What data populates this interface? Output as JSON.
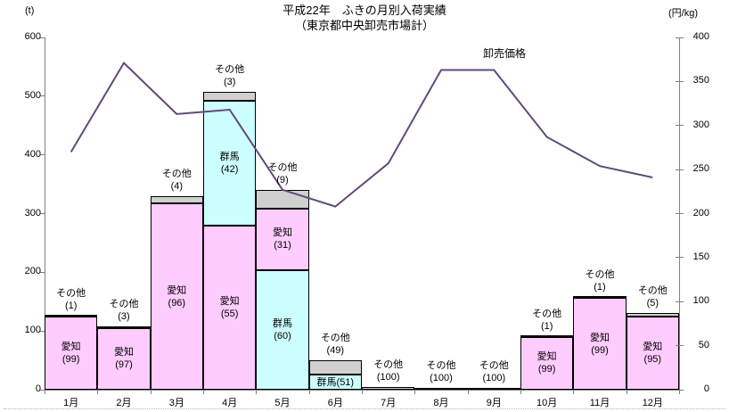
{
  "chart_data": {
    "type": "bar",
    "subtype": "stacked-bar-with-line",
    "title": "平成22年　ふきの月別入荷実績",
    "subtitle": "（東京都中央卸売市場計）",
    "left_axis": {
      "unit": "(t)",
      "min": 0,
      "max": 600,
      "step": 100
    },
    "right_axis": {
      "unit": "(円/kg)",
      "min": 0,
      "max": 400,
      "step": 50
    },
    "categories": [
      "1月",
      "2月",
      "3月",
      "4月",
      "5月",
      "6月",
      "7月",
      "8月",
      "9月",
      "10月",
      "11月",
      "12月"
    ],
    "series": [
      {
        "key": "aichi",
        "label": "愛知",
        "color": "#FFCCFF"
      },
      {
        "key": "gunma",
        "label": "群馬",
        "color": "#CCFFFF"
      },
      {
        "key": "other",
        "label": "その他",
        "color": "#D0D0D0"
      }
    ],
    "bars": [
      {
        "month": "1月",
        "total_t": 126,
        "above_label": "その他\n(1)",
        "segments": [
          {
            "series": "aichi",
            "tons": 125,
            "label": "愛知\n(99)"
          },
          {
            "series": "other",
            "tons": 1,
            "label": ""
          }
        ]
      },
      {
        "month": "2月",
        "total_t": 108,
        "above_label": "その他\n(3)",
        "segments": [
          {
            "series": "aichi",
            "tons": 105,
            "label": "愛知\n(97)"
          },
          {
            "series": "other",
            "tons": 3,
            "label": ""
          }
        ]
      },
      {
        "month": "3月",
        "total_t": 330,
        "above_label": "その他\n(4)",
        "segments": [
          {
            "series": "aichi",
            "tons": 317,
            "label": "愛知\n(96)"
          },
          {
            "series": "other",
            "tons": 13,
            "label": ""
          }
        ]
      },
      {
        "month": "4月",
        "total_t": 507,
        "above_label": "その他\n(3)",
        "segments": [
          {
            "series": "aichi",
            "tons": 279,
            "label": "愛知\n(55)"
          },
          {
            "series": "gunma",
            "tons": 213,
            "label": "群馬\n(42)"
          },
          {
            "series": "other",
            "tons": 15,
            "label": ""
          }
        ]
      },
      {
        "month": "5月",
        "total_t": 340,
        "above_label": "その他\n(9)",
        "segments": [
          {
            "series": "gunma",
            "tons": 204,
            "label": "群馬\n(60)"
          },
          {
            "series": "aichi",
            "tons": 105,
            "label": "愛知\n(31)"
          },
          {
            "series": "other",
            "tons": 31,
            "label": ""
          }
        ]
      },
      {
        "month": "6月",
        "total_t": 50,
        "above_label": "その他\n(49)",
        "segments": [
          {
            "series": "gunma",
            "tons": 25.5,
            "label": "群馬(51)"
          },
          {
            "series": "other",
            "tons": 24.5,
            "label": ""
          }
        ]
      },
      {
        "month": "7月",
        "total_t": 4,
        "above_label": "その他\n(100)",
        "segments": [
          {
            "series": "other",
            "tons": 4,
            "label": ""
          }
        ]
      },
      {
        "month": "8月",
        "total_t": 3,
        "above_label": "その他\n(100)",
        "segments": [
          {
            "series": "other",
            "tons": 3,
            "label": ""
          }
        ]
      },
      {
        "month": "9月",
        "total_t": 3,
        "above_label": "その他\n(100)",
        "segments": [
          {
            "series": "other",
            "tons": 3,
            "label": ""
          }
        ]
      },
      {
        "month": "10月",
        "total_t": 91,
        "above_label": "その他\n(1)",
        "segments": [
          {
            "series": "aichi",
            "tons": 90,
            "label": "愛知\n(99)"
          },
          {
            "series": "other",
            "tons": 1,
            "label": ""
          }
        ]
      },
      {
        "month": "11月",
        "total_t": 158,
        "above_label": "その他\n(1)",
        "segments": [
          {
            "series": "aichi",
            "tons": 156,
            "label": "愛知\n(99)"
          },
          {
            "series": "other",
            "tons": 2,
            "label": ""
          }
        ]
      },
      {
        "month": "12月",
        "total_t": 131,
        "above_label": "その他\n(5)",
        "segments": [
          {
            "series": "aichi",
            "tons": 124,
            "label": "愛知\n(95)"
          },
          {
            "series": "other",
            "tons": 7,
            "label": ""
          }
        ]
      }
    ],
    "line": {
      "name": "卸売価格",
      "color": "#604A7B",
      "values": [
        270,
        371,
        313,
        318,
        227,
        208,
        257,
        363,
        363,
        287,
        254,
        241
      ]
    }
  }
}
